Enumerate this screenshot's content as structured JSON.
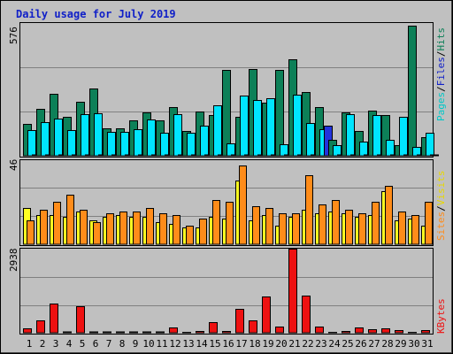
{
  "chart_data": {
    "type": "bar",
    "title": "Daily usage for July 2019",
    "days": [
      "1",
      "2",
      "3",
      "4",
      "5",
      "6",
      "7",
      "8",
      "9",
      "10",
      "11",
      "12",
      "13",
      "14",
      "15",
      "16",
      "17",
      "18",
      "19",
      "20",
      "21",
      "22",
      "23",
      "24",
      "25",
      "26",
      "27",
      "28",
      "29",
      "30",
      "31"
    ],
    "weekend_days": [
      "6",
      "7",
      "13",
      "14",
      "20",
      "21",
      "27",
      "28"
    ],
    "panels": [
      {
        "name": "pages-files-hits",
        "ymax": 576,
        "legend": [
          "Pages",
          "Files",
          "Hits"
        ],
        "series": [
          {
            "name": "Hits",
            "color": "#0D8058",
            "values": [
              140,
              205,
              270,
              170,
              233,
              290,
              120,
              118,
              152,
              187,
              152,
              212,
              107,
              192,
              178,
              372,
              168,
              375,
              232,
              373,
              418,
              275,
              213,
              68,
              190,
              108,
              195,
              175,
              45,
              563,
              80
            ]
          },
          {
            "name": "Files",
            "color": "#00E5FF",
            "values": [
              112,
              145,
              160,
              110,
              180,
              183,
              103,
              103,
              115,
              158,
              100,
              180,
              98,
              132,
              220,
              55,
              262,
              240,
              248,
              50,
              265,
              143,
              115,
              45,
              180,
              60,
              175,
              68,
              168,
              40,
              100
            ]
          },
          {
            "name": "Pages",
            "color": "#2233DD",
            "values": [
              0,
              0,
              0,
              0,
              0,
              0,
              0,
              0,
              0,
              0,
              0,
              0,
              0,
              0,
              0,
              0,
              0,
              0,
              0,
              0,
              0,
              0,
              130,
              0,
              0,
              0,
              0,
              0,
              0,
              0,
              0
            ]
          }
        ]
      },
      {
        "name": "sites-visits",
        "ymax": 46,
        "legend": [
          "Sites",
          "Visits"
        ],
        "series": [
          {
            "name": "Visits",
            "color": "#FFFF22",
            "values": [
              20,
              16,
              16,
              15,
              18,
              13,
              15,
              16,
              15,
              15,
              12,
              11,
              9,
              9,
              15,
              14,
              35,
              13,
              16,
              10,
              15,
              19,
              17,
              18,
              17,
              15,
              16,
              29,
              13,
              14,
              10
            ]
          },
          {
            "name": "Sites",
            "color": "#FF8C1A",
            "values": [
              13,
              19,
              23,
              27,
              19,
              12,
              17,
              18,
              18,
              20,
              17,
              16,
              10,
              14,
              24,
              23,
              43,
              21,
              20,
              17,
              17,
              38,
              22,
              24,
              19,
              17,
              23,
              32,
              18,
              16,
              23
            ]
          }
        ]
      },
      {
        "name": "kbytes",
        "ymax": 2938,
        "legend": [
          "KBytes"
        ],
        "series": [
          {
            "name": "KBytes",
            "color": "#EE1111",
            "values": [
              150,
              440,
              1020,
              0,
              940,
              0,
              0,
              0,
              0,
              0,
              0,
              180,
              30,
              70,
              370,
              70,
              820,
              420,
              1280,
              210,
              2938,
              1300,
              220,
              30,
              60,
              200,
              125,
              150,
              80,
              30,
              100
            ]
          }
        ]
      }
    ]
  },
  "labels": {
    "panel1_ymax": "576",
    "panel2_ymax": "46",
    "panel3_ymax": "2938",
    "legend_pages": "Pages",
    "legend_files": "Files",
    "legend_hits": "Hits",
    "legend_sites": "Sites",
    "legend_visits": "Visits",
    "legend_kbytes": "KBytes",
    "slash": "/"
  },
  "colors": {
    "background": "#C0C0C0",
    "panel": "#C0C0C0",
    "grid": "#808080",
    "weekday_label": "#000000",
    "weekend_label": "#0D8058",
    "pages_label": "#00C8C8",
    "hits_label": "#0D8058",
    "sites_label": "#FF8C1A",
    "visits_label": "#E8D800",
    "kbytes_label": "#EE1111",
    "files_label": "#1020C8"
  }
}
